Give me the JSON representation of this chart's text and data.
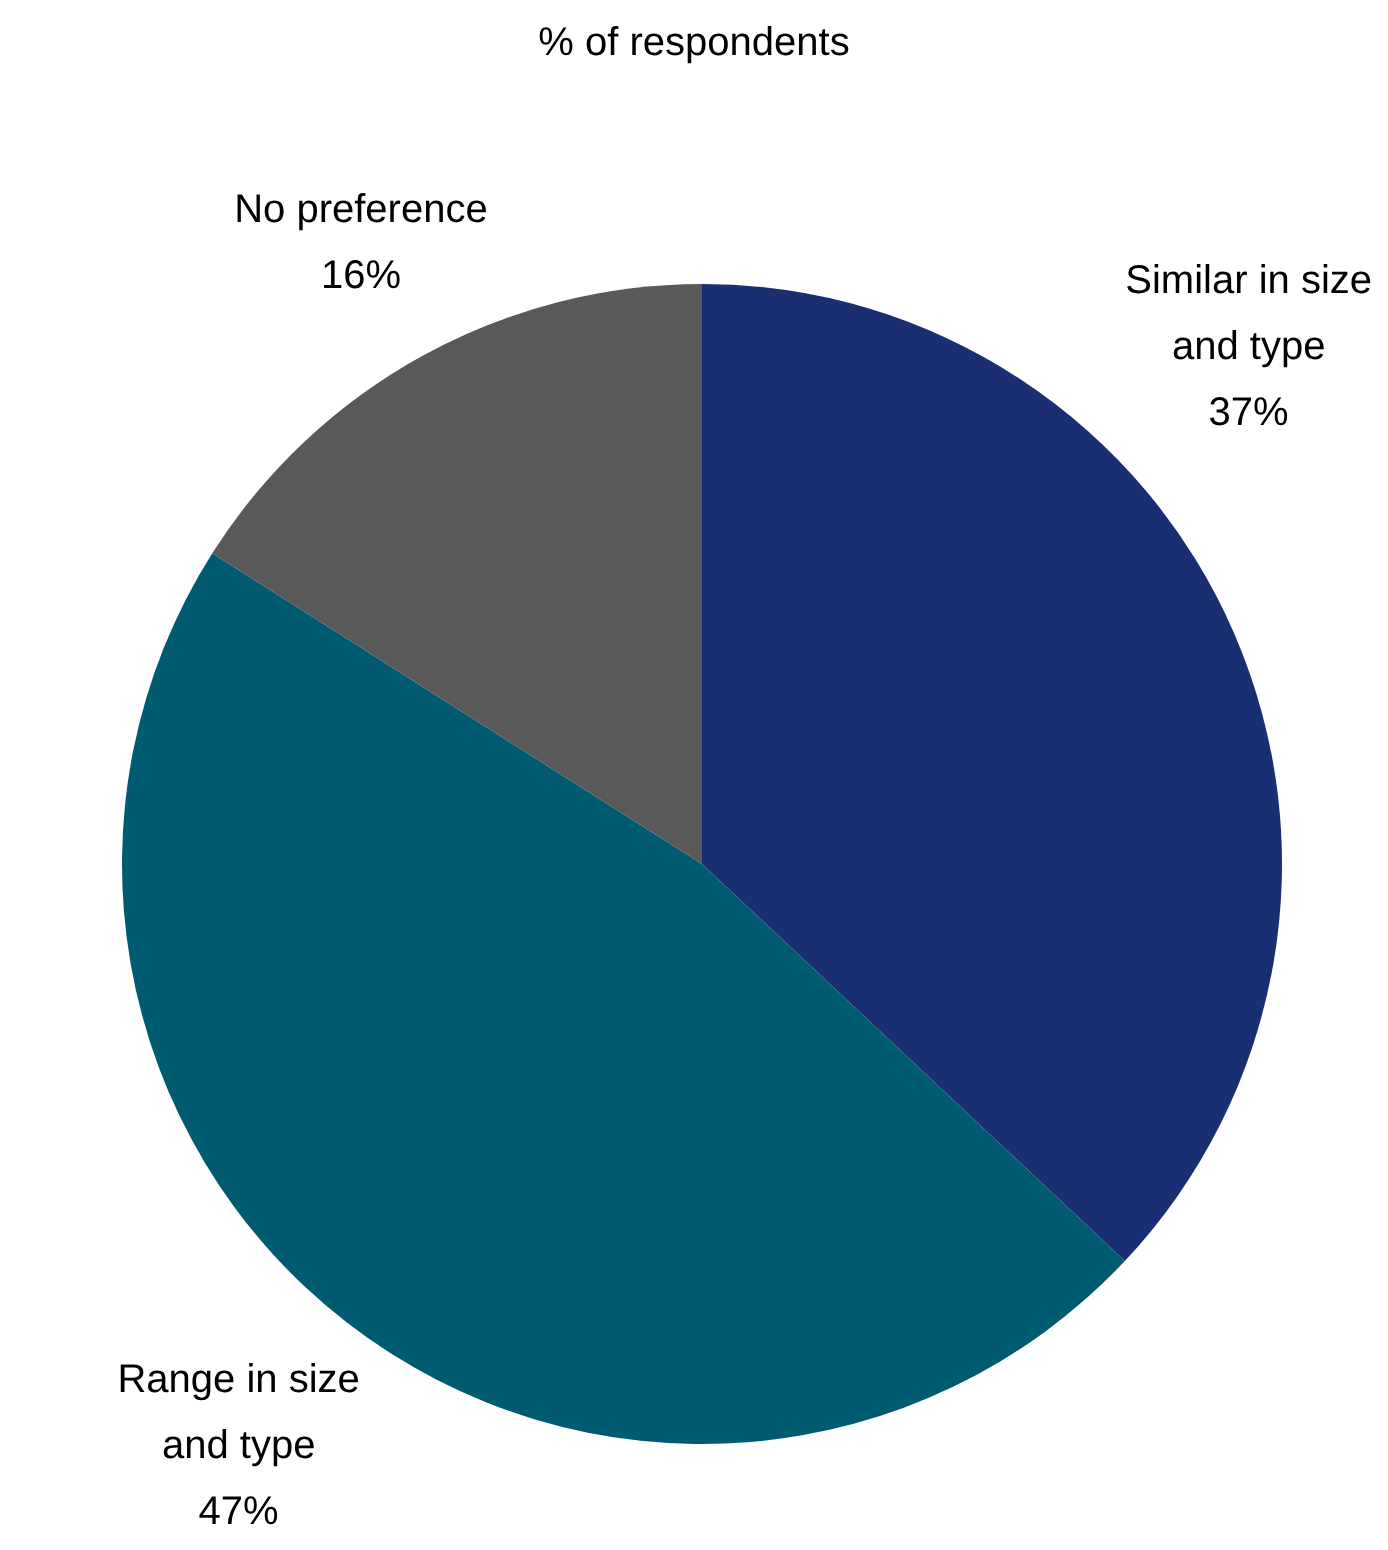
{
  "chart_data": {
    "type": "pie",
    "title": "% of respondents",
    "categories": [
      "Similar in size and type",
      "Range in size and type",
      "No preference"
    ],
    "values": [
      37,
      47,
      16
    ],
    "value_labels": [
      "37%",
      "47%",
      "16%"
    ],
    "colors": [
      "#1a2e72",
      "#005a70",
      "#595959"
    ],
    "legend": false
  }
}
